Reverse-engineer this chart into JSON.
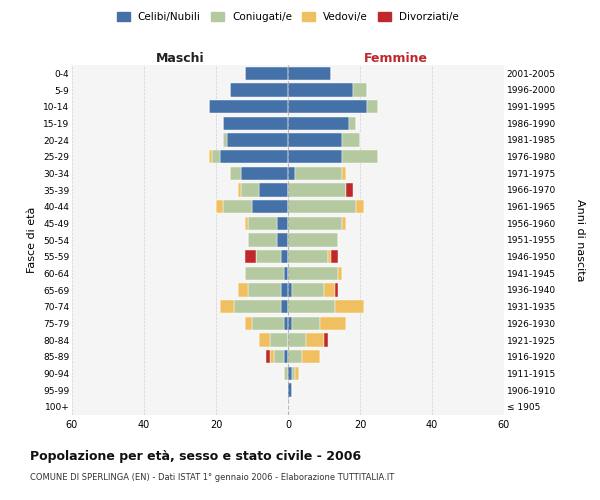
{
  "age_groups": [
    "100+",
    "95-99",
    "90-94",
    "85-89",
    "80-84",
    "75-79",
    "70-74",
    "65-69",
    "60-64",
    "55-59",
    "50-54",
    "45-49",
    "40-44",
    "35-39",
    "30-34",
    "25-29",
    "20-24",
    "15-19",
    "10-14",
    "5-9",
    "0-4"
  ],
  "birth_years": [
    "≤ 1905",
    "1906-1910",
    "1911-1915",
    "1916-1920",
    "1921-1925",
    "1926-1930",
    "1931-1935",
    "1936-1940",
    "1941-1945",
    "1946-1950",
    "1951-1955",
    "1956-1960",
    "1961-1965",
    "1966-1970",
    "1971-1975",
    "1976-1980",
    "1981-1985",
    "1986-1990",
    "1991-1995",
    "1996-2000",
    "2001-2005"
  ],
  "maschi": {
    "celibi": [
      0,
      0,
      0,
      1,
      0,
      1,
      2,
      2,
      1,
      2,
      3,
      3,
      10,
      8,
      13,
      19,
      17,
      18,
      22,
      16,
      12
    ],
    "coniugati": [
      0,
      0,
      1,
      3,
      5,
      9,
      13,
      9,
      11,
      7,
      8,
      8,
      8,
      5,
      3,
      2,
      1,
      0,
      0,
      0,
      0
    ],
    "vedovi": [
      0,
      0,
      0,
      1,
      3,
      2,
      4,
      3,
      0,
      0,
      0,
      1,
      2,
      1,
      0,
      1,
      0,
      0,
      0,
      0,
      0
    ],
    "divorziati": [
      0,
      0,
      0,
      1,
      0,
      0,
      0,
      0,
      0,
      3,
      0,
      0,
      0,
      0,
      0,
      0,
      0,
      0,
      0,
      0,
      0
    ]
  },
  "femmine": {
    "nubili": [
      0,
      1,
      1,
      0,
      0,
      1,
      0,
      1,
      0,
      0,
      0,
      0,
      0,
      0,
      2,
      15,
      15,
      17,
      22,
      18,
      12
    ],
    "coniugate": [
      0,
      0,
      1,
      4,
      5,
      8,
      13,
      9,
      14,
      11,
      14,
      15,
      19,
      16,
      13,
      10,
      5,
      2,
      3,
      4,
      0
    ],
    "vedove": [
      0,
      0,
      1,
      5,
      5,
      7,
      8,
      3,
      1,
      1,
      0,
      1,
      2,
      0,
      1,
      0,
      0,
      0,
      0,
      0,
      0
    ],
    "divorziate": [
      0,
      0,
      0,
      0,
      1,
      0,
      0,
      1,
      0,
      2,
      0,
      0,
      0,
      2,
      0,
      0,
      0,
      0,
      0,
      0,
      0
    ]
  },
  "colors": {
    "celibi": "#4472a8",
    "coniugati": "#b5c9a0",
    "vedovi": "#f0c060",
    "divorziati": "#c0292a"
  },
  "xlim": 60,
  "title": "Popolazione per età, sesso e stato civile - 2006",
  "subtitle": "COMUNE DI SPERLINGA (EN) - Dati ISTAT 1° gennaio 2006 - Elaborazione TUTTITALIA.IT",
  "ylabel": "Fasce di età",
  "ylabel_right": "Anni di nascita",
  "xlabel_left": "Maschi",
  "xlabel_right": "Femmine",
  "legend_labels": [
    "Celibi/Nubili",
    "Coniugati/e",
    "Vedovi/e",
    "Divorziati/e"
  ],
  "bg_color": "#f5f5f5",
  "fig_color": "#ffffff"
}
